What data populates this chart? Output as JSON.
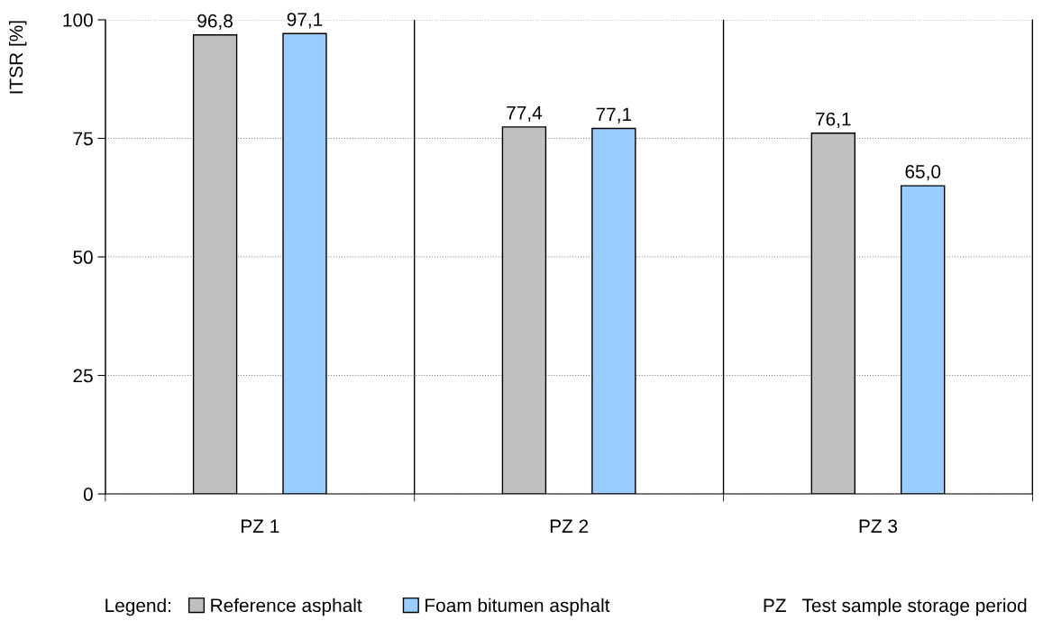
{
  "chart_data": {
    "type": "bar",
    "ylabel": "ITSR [%]",
    "categories": [
      "PZ 1",
      "PZ 2",
      "PZ 3"
    ],
    "series": [
      {
        "name": "Reference asphalt",
        "color": "#c0c0c0",
        "values": [
          96.8,
          77.4,
          76.1
        ],
        "value_labels": [
          "96,8",
          "77,4",
          "76,1"
        ]
      },
      {
        "name": "Foam bitumen asphalt",
        "color": "#99ccff",
        "values": [
          97.1,
          77.1,
          65.0
        ],
        "value_labels": [
          "97,1",
          "77,1",
          "65,0"
        ]
      }
    ],
    "ylim": [
      0,
      100
    ],
    "yticks": [
      0,
      25,
      50,
      75,
      100
    ],
    "grid": true,
    "legend": "bottom",
    "legend_title": "Legend:",
    "annotations": [
      "PZ   Test sample storage period"
    ]
  }
}
